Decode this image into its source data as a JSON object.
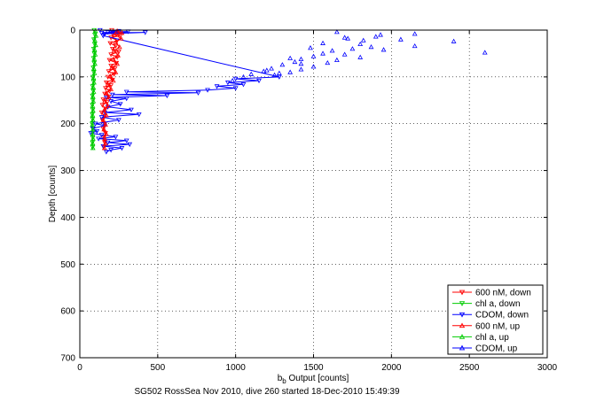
{
  "chart_data": {
    "type": "scatter",
    "xlabel_main": "b",
    "xlabel_sub": "b",
    "xlabel_rest": " Output [counts]",
    "ylabel": "Depth [counts]",
    "caption": "SG502 RossSea Nov 2010, dive 260 started 18-Dec-2010 15:49:39",
    "xlim": [
      0,
      3000
    ],
    "ylim": [
      0,
      700
    ],
    "y_reversed": true,
    "grid": true,
    "grid_style": "dotted",
    "legend_position": "bottom-right",
    "x_ticks": [
      0,
      500,
      1000,
      1500,
      2000,
      2500,
      3000
    ],
    "y_ticks": [
      0,
      100,
      200,
      300,
      400,
      500,
      600,
      700
    ],
    "series": [
      {
        "name": "600 nM, down",
        "color": "#ff0000",
        "marker": "triangle-down",
        "line": true,
        "points": [
          [
            205,
            0
          ],
          [
            250,
            4
          ],
          [
            210,
            8
          ],
          [
            260,
            12
          ],
          [
            200,
            16
          ],
          [
            240,
            22
          ],
          [
            195,
            28
          ],
          [
            230,
            34
          ],
          [
            210,
            40
          ],
          [
            250,
            46
          ],
          [
            200,
            52
          ],
          [
            240,
            58
          ],
          [
            190,
            64
          ],
          [
            235,
            70
          ],
          [
            200,
            76
          ],
          [
            225,
            82
          ],
          [
            185,
            88
          ],
          [
            220,
            94
          ],
          [
            180,
            100
          ],
          [
            210,
            106
          ],
          [
            170,
            112
          ],
          [
            200,
            118
          ],
          [
            165,
            124
          ],
          [
            190,
            130
          ],
          [
            160,
            136
          ],
          [
            185,
            142
          ],
          [
            150,
            148
          ],
          [
            175,
            154
          ],
          [
            145,
            160
          ],
          [
            165,
            168
          ],
          [
            140,
            176
          ],
          [
            160,
            184
          ],
          [
            145,
            192
          ],
          [
            160,
            200
          ],
          [
            150,
            210
          ],
          [
            165,
            220
          ],
          [
            150,
            230
          ],
          [
            160,
            240
          ],
          [
            155,
            250
          ]
        ]
      },
      {
        "name": "chl a, down",
        "color": "#00cc00",
        "marker": "triangle-down",
        "line": true,
        "points": [
          [
            92,
            0
          ],
          [
            96,
            10
          ],
          [
            90,
            20
          ],
          [
            95,
            30
          ],
          [
            89,
            40
          ],
          [
            93,
            50
          ],
          [
            88,
            60
          ],
          [
            92,
            70
          ],
          [
            86,
            80
          ],
          [
            90,
            90
          ],
          [
            84,
            100
          ],
          [
            88,
            110
          ],
          [
            82,
            120
          ],
          [
            86,
            130
          ],
          [
            81,
            140
          ],
          [
            84,
            150
          ],
          [
            80,
            160
          ],
          [
            83,
            170
          ],
          [
            80,
            180
          ],
          [
            82,
            190
          ],
          [
            79,
            200
          ],
          [
            82,
            210
          ],
          [
            80,
            220
          ],
          [
            83,
            230
          ],
          [
            81,
            240
          ],
          [
            82,
            250
          ]
        ]
      },
      {
        "name": "CDOM, down",
        "color": "#0000ff",
        "marker": "triangle-down",
        "line": true,
        "points": [
          [
            130,
            0
          ],
          [
            250,
            2
          ],
          [
            180,
            4
          ],
          [
            310,
            3
          ],
          [
            140,
            6
          ],
          [
            420,
            5
          ],
          [
            160,
            8
          ],
          [
            150,
            12
          ],
          [
            1280,
            100
          ],
          [
            1000,
            104
          ],
          [
            1150,
            108
          ],
          [
            950,
            112
          ],
          [
            1050,
            116
          ],
          [
            880,
            120
          ],
          [
            1000,
            124
          ],
          [
            820,
            128
          ],
          [
            300,
            132
          ],
          [
            760,
            134
          ],
          [
            210,
            138
          ],
          [
            560,
            140
          ],
          [
            170,
            144
          ],
          [
            300,
            146
          ],
          [
            200,
            152
          ],
          [
            260,
            158
          ],
          [
            180,
            164
          ],
          [
            330,
            170
          ],
          [
            160,
            176
          ],
          [
            380,
            180
          ],
          [
            140,
            186
          ],
          [
            250,
            192
          ],
          [
            100,
            200
          ],
          [
            160,
            204
          ],
          [
            85,
            210
          ],
          [
            110,
            216
          ],
          [
            70,
            220
          ],
          [
            140,
            224
          ],
          [
            230,
            228
          ],
          [
            120,
            232
          ],
          [
            300,
            236
          ],
          [
            180,
            240
          ],
          [
            320,
            244
          ],
          [
            150,
            248
          ],
          [
            270,
            252
          ],
          [
            200,
            256
          ],
          [
            170,
            260
          ]
        ]
      },
      {
        "name": "600 nM, up",
        "color": "#ff0000",
        "marker": "triangle-up",
        "line": true,
        "points": [
          [
            240,
            2
          ],
          [
            270,
            6
          ],
          [
            225,
            10
          ],
          [
            265,
            18
          ],
          [
            230,
            26
          ],
          [
            255,
            36
          ],
          [
            220,
            44
          ],
          [
            245,
            54
          ],
          [
            215,
            62
          ],
          [
            240,
            72
          ],
          [
            205,
            80
          ],
          [
            230,
            90
          ],
          [
            195,
            98
          ],
          [
            215,
            108
          ],
          [
            180,
            116
          ],
          [
            200,
            126
          ],
          [
            170,
            134
          ],
          [
            185,
            144
          ],
          [
            160,
            152
          ],
          [
            180,
            162
          ],
          [
            155,
            172
          ],
          [
            170,
            182
          ],
          [
            150,
            192
          ],
          [
            165,
            202
          ],
          [
            155,
            212
          ],
          [
            170,
            222
          ],
          [
            160,
            232
          ],
          [
            165,
            242
          ],
          [
            158,
            252
          ]
        ]
      },
      {
        "name": "chl a, up",
        "color": "#00cc00",
        "marker": "triangle-up",
        "line": true,
        "points": [
          [
            100,
            2
          ],
          [
            104,
            12
          ],
          [
            97,
            22
          ],
          [
            102,
            32
          ],
          [
            95,
            42
          ],
          [
            99,
            52
          ],
          [
            93,
            62
          ],
          [
            97,
            72
          ],
          [
            90,
            82
          ],
          [
            94,
            92
          ],
          [
            88,
            102
          ],
          [
            91,
            112
          ],
          [
            86,
            122
          ],
          [
            89,
            132
          ],
          [
            84,
            142
          ],
          [
            87,
            152
          ],
          [
            82,
            162
          ],
          [
            85,
            172
          ],
          [
            82,
            182
          ],
          [
            84,
            192
          ],
          [
            81,
            202
          ],
          [
            84,
            212
          ],
          [
            82,
            222
          ],
          [
            85,
            232
          ],
          [
            83,
            242
          ],
          [
            84,
            252
          ]
        ]
      },
      {
        "name": "CDOM, up",
        "color": "#0000ff",
        "marker": "triangle-up",
        "line": false,
        "points": [
          [
            2150,
            8
          ],
          [
            1930,
            10
          ],
          [
            1650,
            4
          ],
          [
            1900,
            14
          ],
          [
            1720,
            18
          ],
          [
            2060,
            20
          ],
          [
            2400,
            24
          ],
          [
            1560,
            28
          ],
          [
            1800,
            30
          ],
          [
            2150,
            34
          ],
          [
            1870,
            36
          ],
          [
            2600,
            48
          ],
          [
            1750,
            40
          ],
          [
            1620,
            44
          ],
          [
            1950,
            42
          ],
          [
            1700,
            52
          ],
          [
            1500,
            56
          ],
          [
            1800,
            58
          ],
          [
            1420,
            62
          ],
          [
            1650,
            64
          ],
          [
            1380,
            68
          ],
          [
            1590,
            70
          ],
          [
            1300,
            74
          ],
          [
            1500,
            78
          ],
          [
            1230,
            82
          ],
          [
            1420,
            84
          ],
          [
            1180,
            88
          ],
          [
            1350,
            90
          ],
          [
            1100,
            94
          ],
          [
            1250,
            96
          ],
          [
            980,
            108
          ],
          [
            1700,
            16
          ],
          [
            1820,
            22
          ],
          [
            1480,
            38
          ],
          [
            1560,
            50
          ],
          [
            1350,
            60
          ],
          [
            1420,
            72
          ],
          [
            1200,
            86
          ],
          [
            1280,
            92
          ],
          [
            1050,
            100
          ]
        ]
      }
    ]
  }
}
